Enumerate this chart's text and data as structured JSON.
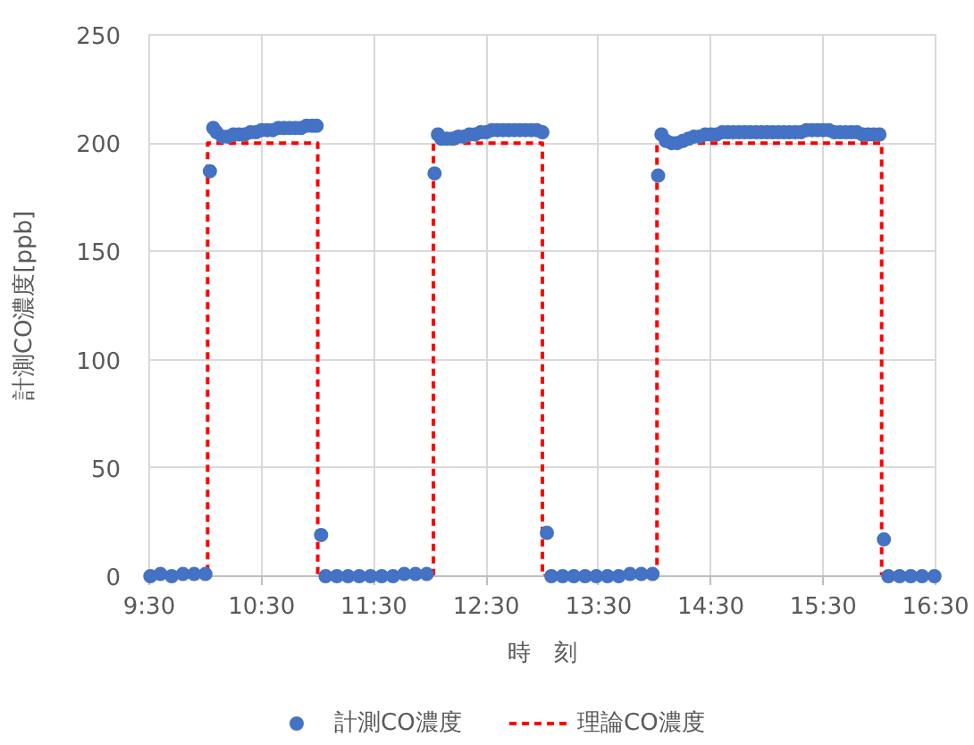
{
  "chart_data": {
    "type": "scatter",
    "xlabel": "時　刻",
    "ylabel": "計測CO濃度[ppb]",
    "xlim": [
      9.5,
      16.5
    ],
    "xticks": [
      {
        "value": 9.5,
        "label": "9:30"
      },
      {
        "value": 10.5,
        "label": "10:30"
      },
      {
        "value": 11.5,
        "label": "11:30"
      },
      {
        "value": 12.5,
        "label": "12:30"
      },
      {
        "value": 13.5,
        "label": "13:30"
      },
      {
        "value": 14.5,
        "label": "14:30"
      },
      {
        "value": 15.5,
        "label": "15:30"
      },
      {
        "value": 16.5,
        "label": "16:30"
      }
    ],
    "ylim": [
      0,
      250
    ],
    "yticks": [
      0,
      50,
      100,
      150,
      200,
      250
    ],
    "grid": true,
    "legend": "bottom",
    "series": [
      {
        "name": "計測CO濃度",
        "marker": "circle",
        "color": "#4472c4",
        "x": [
          9.51,
          9.6,
          9.7,
          9.8,
          9.9,
          10.0,
          10.04,
          10.07,
          10.1,
          10.15,
          10.2,
          10.25,
          10.3,
          10.35,
          10.4,
          10.45,
          10.5,
          10.55,
          10.6,
          10.65,
          10.7,
          10.75,
          10.8,
          10.85,
          10.9,
          10.95,
          10.99,
          11.03,
          11.07,
          11.17,
          11.27,
          11.37,
          11.47,
          11.57,
          11.67,
          11.77,
          11.87,
          11.97,
          12.04,
          12.07,
          12.1,
          12.15,
          12.2,
          12.25,
          12.3,
          12.35,
          12.4,
          12.45,
          12.5,
          12.55,
          12.6,
          12.65,
          12.7,
          12.75,
          12.8,
          12.85,
          12.9,
          12.95,
          13.0,
          13.04,
          13.08,
          13.18,
          13.28,
          13.38,
          13.48,
          13.58,
          13.68,
          13.78,
          13.88,
          13.98,
          14.03,
          14.06,
          14.1,
          14.15,
          14.2,
          14.25,
          14.3,
          14.35,
          14.4,
          14.45,
          14.5,
          14.55,
          14.6,
          14.65,
          14.7,
          14.75,
          14.8,
          14.85,
          14.9,
          14.95,
          15.0,
          15.05,
          15.1,
          15.15,
          15.2,
          15.25,
          15.3,
          15.35,
          15.4,
          15.45,
          15.5,
          15.55,
          15.6,
          15.65,
          15.7,
          15.75,
          15.8,
          15.85,
          15.9,
          15.95,
          16.0,
          16.04,
          16.08,
          16.18,
          16.28,
          16.38,
          16.49
        ],
        "values": [
          0,
          1,
          0,
          1,
          1,
          1,
          187,
          207,
          205,
          203,
          203,
          204,
          204,
          204,
          205,
          205,
          206,
          206,
          206,
          207,
          207,
          207,
          207,
          207,
          208,
          208,
          208,
          19,
          0,
          0,
          0,
          0,
          0,
          0,
          0,
          1,
          1,
          1,
          186,
          204,
          202,
          202,
          202,
          203,
          203,
          204,
          204,
          205,
          205,
          206,
          206,
          206,
          206,
          206,
          206,
          206,
          206,
          206,
          205,
          20,
          0,
          0,
          0,
          0,
          0,
          0,
          0,
          1,
          1,
          1,
          185,
          204,
          201,
          200,
          200,
          201,
          202,
          203,
          203,
          204,
          204,
          204,
          205,
          205,
          205,
          205,
          205,
          205,
          205,
          205,
          205,
          205,
          205,
          205,
          205,
          205,
          205,
          206,
          206,
          206,
          206,
          206,
          205,
          205,
          205,
          205,
          205,
          204,
          204,
          204,
          204,
          17,
          0,
          0,
          0,
          0,
          0
        ]
      },
      {
        "name": "理論CO濃度",
        "type": "line",
        "line_style": "dashed",
        "color": "#ff0000",
        "x": [
          9.5,
          10.02,
          10.02,
          11.0,
          11.0,
          12.03,
          12.03,
          13.0,
          13.0,
          14.02,
          14.02,
          16.02,
          16.02,
          16.5
        ],
        "values": [
          0,
          0,
          200,
          200,
          0,
          0,
          200,
          200,
          0,
          0,
          200,
          200,
          0,
          0
        ]
      }
    ]
  }
}
